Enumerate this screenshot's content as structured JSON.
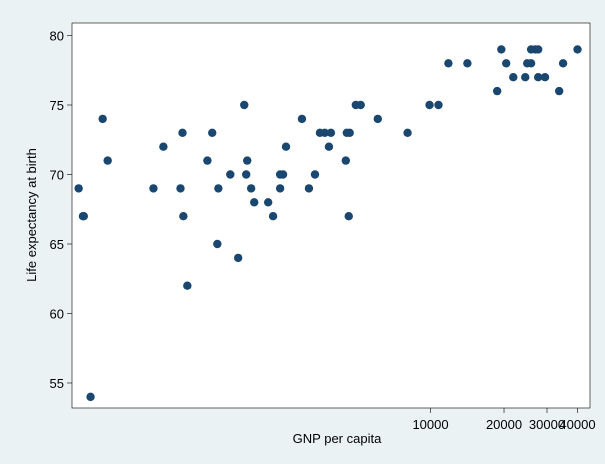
{
  "chart_data": {
    "type": "scatter",
    "x_label": "GNP per capita",
    "y_label": "Life expectancy at birth",
    "x_scale": "log",
    "color": "#1a476f",
    "background": "#eaf2f3",
    "xlim": [
      340,
      45000
    ],
    "ylim": [
      53.2,
      80.9
    ],
    "xticks": [
      10000,
      20000,
      30000,
      40000
    ],
    "yticks": [
      55,
      60,
      65,
      70,
      75,
      80
    ],
    "x": [
      362,
      377,
      380,
      405,
      454,
      476,
      733,
      805,
      946,
      964,
      972,
      1009,
      1219,
      1276,
      1339,
      1352,
      1513,
      1630,
      1726,
      1758,
      1775,
      1842,
      1896,
      2163,
      2265,
      2421,
      2421,
      2489,
      2559,
      2974,
      3177,
      3363,
      3524,
      3690,
      3837,
      3909,
      4498,
      4540,
      4667,
      4624,
      4943,
      5176,
      6081,
      8054,
      9908,
      10779,
      11836,
      14158,
      18750,
      19498,
      20417,
      21827,
      24434,
      24889,
      25823,
      25823,
      26853,
      27606,
      27606,
      29444,
      33651,
      34914,
      40000
    ],
    "values": [
      69,
      67,
      67,
      54,
      74,
      71,
      69,
      72,
      69,
      73,
      67,
      62,
      71,
      73,
      65,
      69,
      70,
      64,
      75,
      70,
      71,
      69,
      68,
      68,
      67,
      69,
      70,
      70,
      72,
      74,
      69,
      70,
      73,
      73,
      72,
      73,
      71,
      73,
      73,
      67,
      75,
      75,
      74,
      73,
      75,
      75,
      78,
      78,
      76,
      79,
      78,
      77,
      77,
      78,
      78,
      79,
      79,
      77,
      79,
      77,
      76,
      78,
      79
    ]
  }
}
